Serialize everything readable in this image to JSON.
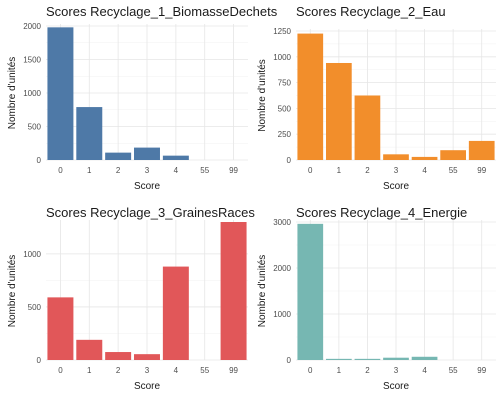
{
  "chart_data": [
    {
      "type": "bar",
      "title": "Scores Recyclage_1_BiomasseDechets",
      "xlabel": "Score",
      "ylabel": "Nombre d'unités",
      "categories": [
        "0",
        "1",
        "2",
        "3",
        "4",
        "55",
        "99"
      ],
      "values": [
        1980,
        790,
        110,
        185,
        65,
        0,
        0
      ],
      "ylim": [
        0,
        2000
      ],
      "yticks": [
        0,
        500,
        1000,
        1500,
        2000
      ],
      "color": "#4e79a7",
      "grid": true
    },
    {
      "type": "bar",
      "title": "Scores Recyclage_2_Eau",
      "xlabel": "Score",
      "ylabel": "Nombre d'unités",
      "categories": [
        "0",
        "1",
        "2",
        "3",
        "4",
        "55",
        "99"
      ],
      "values": [
        1225,
        940,
        625,
        55,
        30,
        95,
        185
      ],
      "ylim": [
        0,
        1250
      ],
      "yticks": [
        0,
        250,
        500,
        750,
        1000,
        1250
      ],
      "color": "#f28e2b",
      "grid": true
    },
    {
      "type": "bar",
      "title": "Scores Recyclage_3_GrainesRaces",
      "xlabel": "Score",
      "ylabel": "Nombre d'unités",
      "categories": [
        "0",
        "1",
        "2",
        "3",
        "4",
        "55",
        "99"
      ],
      "values": [
        590,
        190,
        75,
        55,
        880,
        0,
        1300
      ],
      "ylim": [
        0,
        1300
      ],
      "yticks": [
        0,
        500,
        1000
      ],
      "color": "#e15759",
      "grid": true
    },
    {
      "type": "bar",
      "title": "Scores Recyclage_4_Energie",
      "xlabel": "Score",
      "ylabel": "Nombre d'unités",
      "categories": [
        "0",
        "1",
        "2",
        "3",
        "4",
        "55",
        "99"
      ],
      "values": [
        2960,
        25,
        25,
        50,
        70,
        0,
        0
      ],
      "ylim": [
        0,
        3000
      ],
      "yticks": [
        0,
        1000,
        2000,
        3000
      ],
      "color": "#76b7b2",
      "grid": true
    }
  ]
}
